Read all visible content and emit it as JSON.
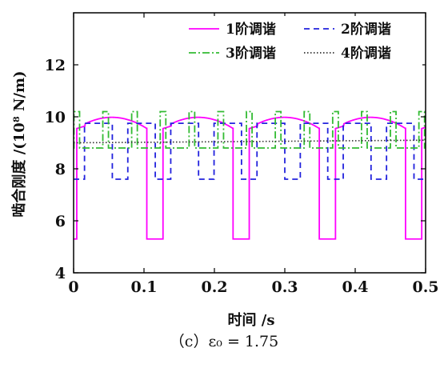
{
  "chart_data": {
    "type": "line",
    "xlabel": "时间 /s",
    "ylabel": "啮合刚度 /(10⁸ N/m)",
    "xlim": [
      0,
      0.5
    ],
    "ylim": [
      4,
      14
    ],
    "x_ticks": [
      "0",
      "0.1",
      "0.2",
      "0.3",
      "0.4",
      "0.5"
    ],
    "y_ticks": [
      "4",
      "6",
      "8",
      "10",
      "12"
    ],
    "grid": false,
    "legend_position": "top-right",
    "series": [
      {
        "name": "1阶调谐",
        "color": "#ff00ff",
        "style": "solid",
        "period": 0.1225,
        "low": 5.3,
        "high_range": [
          9.55,
          9.98
        ],
        "low_duration": 0.023
      },
      {
        "name": "2阶调谐",
        "color": "#2222dd",
        "style": "dashed",
        "period": 0.06125,
        "low": 7.6,
        "high": 9.75,
        "low_duration": 0.022
      },
      {
        "name": "3阶调谐",
        "color": "#33bb33",
        "style": "dash-dot",
        "period": 0.04083,
        "low": 8.8,
        "high": 10.2,
        "high_duration": 0.008
      },
      {
        "name": "4阶调谐",
        "color": "#333333",
        "style": "dotted",
        "value_start": 9.0,
        "value_end": 9.1
      }
    ]
  },
  "caption": "（c）ε₀ = 1.75"
}
